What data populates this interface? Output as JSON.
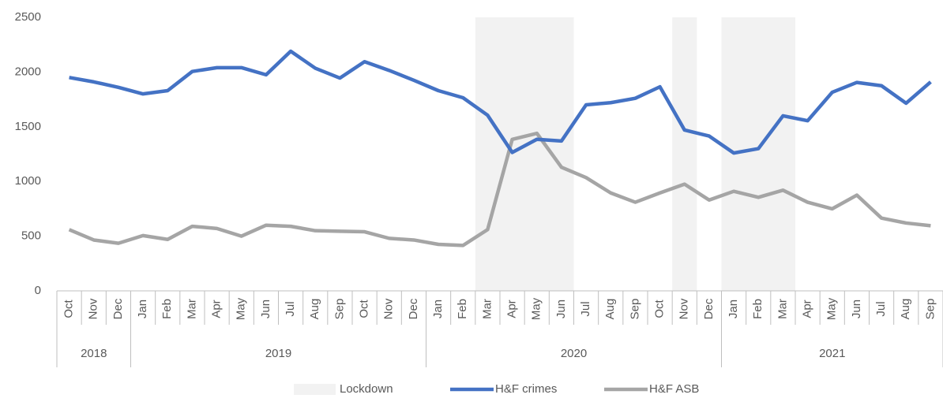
{
  "chart_data": {
    "type": "line",
    "categories": [
      "Oct",
      "Nov",
      "Dec",
      "Jan",
      "Feb",
      "Mar",
      "Apr",
      "May",
      "Jun",
      "Jul",
      "Aug",
      "Sep",
      "Oct",
      "Nov",
      "Dec",
      "Jan",
      "Feb",
      "Mar",
      "Apr",
      "May",
      "Jun",
      "Jul",
      "Aug",
      "Sep",
      "Oct",
      "Nov",
      "Dec",
      "Jan",
      "Feb",
      "Mar",
      "Apr",
      "May",
      "Jun",
      "Jul",
      "Aug",
      "Sep"
    ],
    "groups": [
      {
        "label": "2018",
        "count": 3
      },
      {
        "label": "2019",
        "count": 12
      },
      {
        "label": "2020",
        "count": 12
      },
      {
        "label": "2021",
        "count": 9
      }
    ],
    "series": [
      {
        "name": "H&F crimes",
        "color": "#4472c4",
        "values": [
          1950,
          1910,
          1860,
          1800,
          1830,
          2005,
          2040,
          2040,
          1975,
          2190,
          2035,
          1945,
          2095,
          2015,
          1925,
          1830,
          1765,
          1605,
          1265,
          1385,
          1370,
          1700,
          1720,
          1760,
          1865,
          1470,
          1415,
          1260,
          1300,
          1600,
          1555,
          1815,
          1905,
          1875,
          1715,
          1910
        ]
      },
      {
        "name": "H&F ASB",
        "color": "#a5a5a5",
        "values": [
          560,
          465,
          435,
          505,
          470,
          590,
          570,
          500,
          600,
          590,
          550,
          545,
          540,
          480,
          465,
          425,
          415,
          560,
          1385,
          1440,
          1130,
          1035,
          895,
          810,
          895,
          975,
          830,
          910,
          855,
          920,
          810,
          750,
          875,
          665,
          620,
          595
        ]
      }
    ],
    "shaded": {
      "name": "Lockdown",
      "color": "#f2f2f2",
      "spans": [
        [
          17,
          20
        ],
        [
          25,
          25
        ],
        [
          27,
          29
        ]
      ]
    },
    "ylim": [
      0,
      2500
    ],
    "yticks": [
      0,
      500,
      1000,
      1500,
      2000,
      2500
    ],
    "grid": false,
    "legend": "bottom"
  }
}
